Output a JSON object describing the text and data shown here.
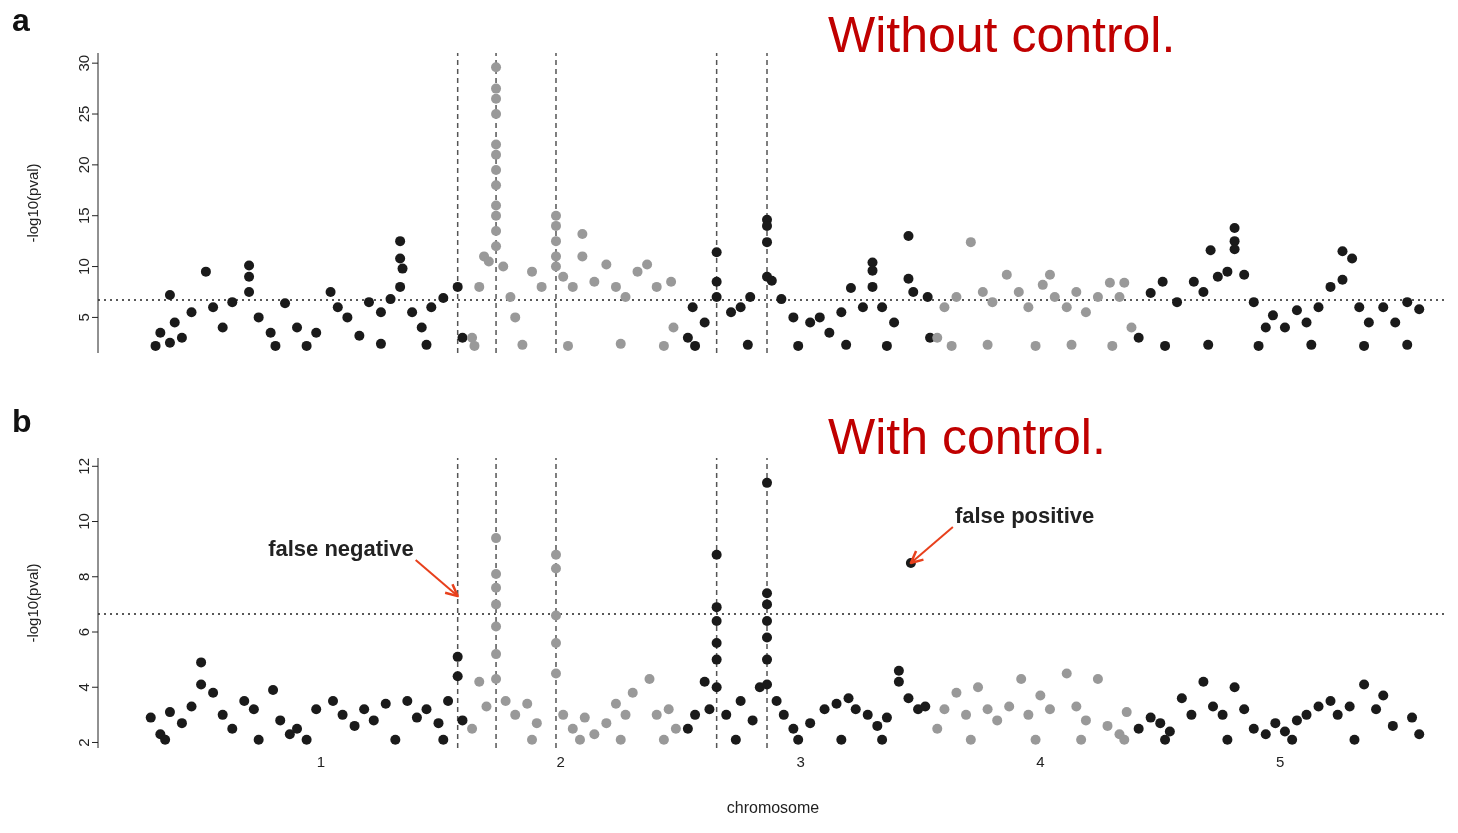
{
  "chart_data": [
    {
      "type": "scatter",
      "title": "a",
      "subtitle": "Without control.",
      "ylabel": "-log10(pval)",
      "xlim": [
        0.07,
        5.7
      ],
      "ylim": [
        1.5,
        31
      ],
      "yticks": [
        5,
        10,
        15,
        20,
        25,
        30
      ],
      "tick_labels": "y",
      "marker": "circle",
      "ref_lines": [
        {
          "axis": "x",
          "value": 1.57,
          "line_style": "dashed",
          "color": "#555555"
        },
        {
          "axis": "x",
          "value": 1.73,
          "line_style": "dashed",
          "color": "#555555"
        },
        {
          "axis": "x",
          "value": 1.98,
          "line_style": "dashed",
          "color": "#555555"
        },
        {
          "axis": "x",
          "value": 2.65,
          "line_style": "dashed",
          "color": "#555555"
        },
        {
          "axis": "x",
          "value": 2.86,
          "line_style": "dashed",
          "color": "#555555"
        },
        {
          "axis": "y",
          "value": 6.7,
          "line_style": "dotted",
          "color": "#222222"
        }
      ],
      "series": [
        {
          "color": "#1a1a1a",
          "x": [
            0.31,
            0.33,
            0.37,
            0.39,
            0.42,
            0.46,
            0.52,
            0.55,
            0.59,
            0.63,
            0.7,
            0.7,
            0.7,
            0.74,
            0.79,
            0.85,
            0.9,
            0.94,
            0.98,
            1.04,
            1.07,
            1.11,
            1.16,
            1.2,
            1.25,
            1.29,
            1.33,
            1.33,
            1.34,
            1.33,
            1.38,
            1.42,
            1.46,
            1.51,
            1.57,
            1.59,
            0.37,
            0.81,
            1.25,
            1.44
          ],
          "values": [
            2.2,
            3.5,
            7.2,
            4.5,
            3,
            5.5,
            9.5,
            6,
            4,
            6.5,
            10.1,
            9,
            7.5,
            5,
            3.5,
            6.4,
            4,
            2.2,
            3.5,
            7.5,
            6,
            5,
            3.2,
            6.5,
            5.5,
            6.8,
            12.5,
            10.8,
            9.8,
            8,
            5.5,
            4,
            6,
            6.9,
            8.0,
            3,
            2.5,
            2.2,
            2.4,
            2.3
          ]
        },
        {
          "color": "#999999",
          "x": [
            1.63,
            1.66,
            1.68,
            1.7,
            1.73,
            1.73,
            1.73,
            1.73,
            1.73,
            1.73,
            1.73,
            1.73,
            1.73,
            1.73,
            1.73,
            1.73,
            1.76,
            1.79,
            1.81,
            1.88,
            1.92,
            1.98,
            1.98,
            1.98,
            1.98,
            1.98,
            2.01,
            2.05,
            2.09,
            2.09,
            2.14,
            2.19,
            2.23,
            2.27,
            2.32,
            2.36,
            2.4,
            2.46,
            2.47,
            1.64,
            1.84,
            2.03,
            2.25,
            2.43
          ],
          "values": [
            3,
            8,
            11,
            10.5,
            29.6,
            27.5,
            26.5,
            25,
            22,
            21,
            19.5,
            18,
            16,
            15,
            13.5,
            12,
            10,
            7,
            5,
            9.5,
            8,
            15,
            14,
            12.5,
            11,
            10,
            9,
            8,
            13.2,
            11,
            8.5,
            10.2,
            8,
            7,
            9.5,
            10.2,
            8,
            8.5,
            4,
            2.2,
            2.3,
            2.2,
            2.4,
            2.2
          ]
        },
        {
          "color": "#1a1a1a",
          "x": [
            2.53,
            2.55,
            2.6,
            2.65,
            2.65,
            2.65,
            2.71,
            2.75,
            2.79,
            2.86,
            2.86,
            2.86,
            2.86,
            2.88,
            2.92,
            2.97,
            3.04,
            3.08,
            3.12,
            3.17,
            3.21,
            3.26,
            3.3,
            3.3,
            3.3,
            3.34,
            3.39,
            3.45,
            3.45,
            3.47,
            3.53,
            3.54,
            2.56,
            2.78,
            2.99,
            3.19,
            3.36
          ],
          "values": [
            3,
            6,
            4.5,
            11.4,
            8.5,
            7,
            5.5,
            6,
            7,
            14.6,
            14,
            12.4,
            9,
            8.6,
            6.8,
            5,
            4.5,
            5,
            3.5,
            5.5,
            7.9,
            6,
            10.4,
            9.6,
            8,
            6,
            4.5,
            13,
            8.8,
            7.5,
            7,
            3,
            2.2,
            2.3,
            2.2,
            2.3,
            2.2
          ]
        },
        {
          "color": "#999999",
          "x": [
            3.57,
            3.6,
            3.65,
            3.71,
            3.76,
            3.8,
            3.86,
            3.91,
            3.95,
            4.01,
            4.04,
            4.06,
            4.11,
            4.15,
            4.19,
            4.24,
            4.29,
            4.33,
            4.35,
            4.38,
            3.63,
            3.78,
            3.98,
            4.13,
            4.3
          ],
          "values": [
            3,
            6,
            7,
            12.4,
            7.5,
            6.5,
            9.2,
            7.5,
            6,
            8.2,
            9.2,
            7,
            6,
            7.5,
            5.5,
            7,
            8.4,
            7,
            8.4,
            4,
            2.2,
            2.3,
            2.2,
            2.3,
            2.2
          ]
        },
        {
          "color": "#1a1a1a",
          "x": [
            4.41,
            4.46,
            4.51,
            4.57,
            4.64,
            4.68,
            4.71,
            4.74,
            4.78,
            4.81,
            4.81,
            4.81,
            4.85,
            4.89,
            4.94,
            4.97,
            5.02,
            5.07,
            5.11,
            5.16,
            5.21,
            5.26,
            5.3,
            5.26,
            5.33,
            5.37,
            5.43,
            5.48,
            5.53,
            5.58,
            4.52,
            4.7,
            4.91,
            5.13,
            5.35,
            5.53
          ],
          "values": [
            3,
            7.4,
            8.5,
            6.5,
            8.5,
            7.5,
            11.6,
            9,
            9.5,
            13.8,
            12.5,
            11.7,
            9.2,
            6.5,
            4,
            5.2,
            4,
            5.7,
            4.5,
            6,
            8,
            11.5,
            10.8,
            8.7,
            6,
            4.5,
            6,
            4.5,
            6.5,
            5.8,
            2.2,
            2.3,
            2.2,
            2.3,
            2.2,
            2.3
          ]
        }
      ]
    },
    {
      "type": "scatter",
      "title": "b",
      "subtitle": "With control.",
      "ylabel": "-log10(pval)",
      "xlabel": "chromosome",
      "xlim": [
        0.07,
        5.7
      ],
      "ylim": [
        1.8,
        12.3
      ],
      "yticks": [
        2,
        4,
        6,
        8,
        10,
        12
      ],
      "xticks": [
        1,
        2,
        3,
        4,
        5
      ],
      "marker": "circle",
      "ref_lines": [
        {
          "axis": "x",
          "value": 1.57,
          "line_style": "dashed",
          "color": "#555555"
        },
        {
          "axis": "x",
          "value": 1.73,
          "line_style": "dashed",
          "color": "#555555"
        },
        {
          "axis": "x",
          "value": 1.98,
          "line_style": "dashed",
          "color": "#555555"
        },
        {
          "axis": "x",
          "value": 2.65,
          "line_style": "dashed",
          "color": "#555555"
        },
        {
          "axis": "x",
          "value": 2.86,
          "line_style": "dashed",
          "color": "#555555"
        },
        {
          "axis": "y",
          "value": 6.65,
          "line_style": "dotted",
          "color": "#222222"
        }
      ],
      "annotations": [
        {
          "text": "false negative",
          "x": 1.57,
          "y": 7.3
        },
        {
          "text": "false positive",
          "x": 3.46,
          "y": 8.5
        }
      ],
      "series": [
        {
          "color": "#1a1a1a",
          "x": [
            0.29,
            0.33,
            0.37,
            0.42,
            0.46,
            0.5,
            0.5,
            0.55,
            0.59,
            0.63,
            0.68,
            0.72,
            0.8,
            0.83,
            0.87,
            0.9,
            0.98,
            1.05,
            1.09,
            1.14,
            1.18,
            1.22,
            1.27,
            1.36,
            1.4,
            1.44,
            1.49,
            1.53,
            1.57,
            1.57,
            1.59,
            0.35,
            0.74,
            0.94,
            1.31,
            1.51
          ],
          "values": [
            2.9,
            2.3,
            3.1,
            2.7,
            3.3,
            4.9,
            4.1,
            3.8,
            3,
            2.5,
            3.5,
            3.2,
            3.9,
            2.8,
            2.3,
            2.5,
            3.2,
            3.5,
            3,
            2.6,
            3.2,
            2.8,
            3.4,
            3.5,
            2.9,
            3.2,
            2.7,
            3.5,
            5.1,
            4.4,
            2.8,
            2.1,
            2.1,
            2.1,
            2.1,
            2.1
          ]
        },
        {
          "color": "#999999",
          "x": [
            1.63,
            1.66,
            1.69,
            1.73,
            1.73,
            1.73,
            1.73,
            1.73,
            1.73,
            1.73,
            1.77,
            1.81,
            1.86,
            1.9,
            1.98,
            1.98,
            1.98,
            1.98,
            1.98,
            2.01,
            2.05,
            2.1,
            2.14,
            2.19,
            2.23,
            2.27,
            2.3,
            2.37,
            2.4,
            2.45,
            2.48,
            1.88,
            2.08,
            2.25,
            2.43
          ],
          "values": [
            2.5,
            4.2,
            3.3,
            9.4,
            8.1,
            7.6,
            7,
            6.2,
            5.2,
            4.3,
            3.5,
            3,
            3.4,
            2.7,
            8.8,
            8.3,
            6.6,
            5.6,
            4.5,
            3,
            2.5,
            2.9,
            2.3,
            2.7,
            3.4,
            3,
            3.8,
            4.3,
            3,
            3.2,
            2.5,
            2.1,
            2.1,
            2.1,
            2.1
          ]
        },
        {
          "color": "#1a1a1a",
          "x": [
            2.53,
            2.56,
            2.6,
            2.62,
            2.65,
            2.65,
            2.65,
            2.65,
            2.65,
            2.65,
            2.69,
            2.75,
            2.8,
            2.83,
            2.86,
            2.86,
            2.86,
            2.86,
            2.86,
            2.86,
            2.86,
            2.9,
            2.93,
            2.97,
            3.04,
            3.1,
            3.15,
            3.2,
            3.23,
            3.28,
            3.32,
            3.36,
            3.41,
            3.41,
            3.46,
            3.45,
            3.49,
            3.52,
            2.73,
            2.99,
            3.17,
            3.34
          ],
          "values": [
            2.5,
            3,
            4.2,
            3.2,
            8.8,
            6.9,
            6.4,
            5.6,
            5,
            4,
            3,
            3.5,
            2.8,
            4,
            11.4,
            7.4,
            7,
            6.4,
            5.8,
            5,
            4.1,
            3.5,
            3,
            2.5,
            2.7,
            3.2,
            3.4,
            3.6,
            3.2,
            3,
            2.6,
            2.9,
            4.6,
            4.2,
            8.5,
            3.6,
            3.2,
            3.3,
            2.1,
            2.1,
            2.1,
            2.1
          ]
        },
        {
          "color": "#999999",
          "x": [
            3.57,
            3.6,
            3.65,
            3.69,
            3.74,
            3.78,
            3.82,
            3.87,
            3.92,
            3.95,
            4.0,
            4.04,
            4.11,
            4.15,
            4.19,
            4.24,
            4.28,
            4.33,
            4.36,
            3.71,
            3.98,
            4.17,
            4.35
          ],
          "values": [
            2.5,
            3.2,
            3.8,
            3,
            4,
            3.2,
            2.8,
            3.3,
            4.3,
            3,
            3.7,
            3.2,
            4.5,
            3.3,
            2.8,
            4.3,
            2.6,
            2.3,
            3.1,
            2.1,
            2.1,
            2.1,
            2.1
          ]
        },
        {
          "color": "#1a1a1a",
          "x": [
            4.41,
            4.46,
            4.5,
            4.54,
            4.59,
            4.63,
            4.68,
            4.72,
            4.76,
            4.81,
            4.85,
            4.89,
            4.94,
            4.98,
            5.02,
            5.07,
            5.11,
            5.16,
            5.21,
            5.24,
            5.29,
            5.35,
            5.4,
            5.43,
            5.47,
            5.55,
            5.58,
            4.52,
            4.78,
            5.05,
            5.31
          ],
          "values": [
            2.5,
            2.9,
            2.7,
            2.4,
            3.6,
            3,
            4.2,
            3.3,
            3,
            4,
            3.2,
            2.5,
            2.3,
            2.7,
            2.4,
            2.8,
            3,
            3.3,
            3.5,
            3,
            3.3,
            4.1,
            3.2,
            3.7,
            2.6,
            2.9,
            2.3,
            2.1,
            2.1,
            2.1,
            2.1
          ]
        }
      ]
    }
  ]
}
